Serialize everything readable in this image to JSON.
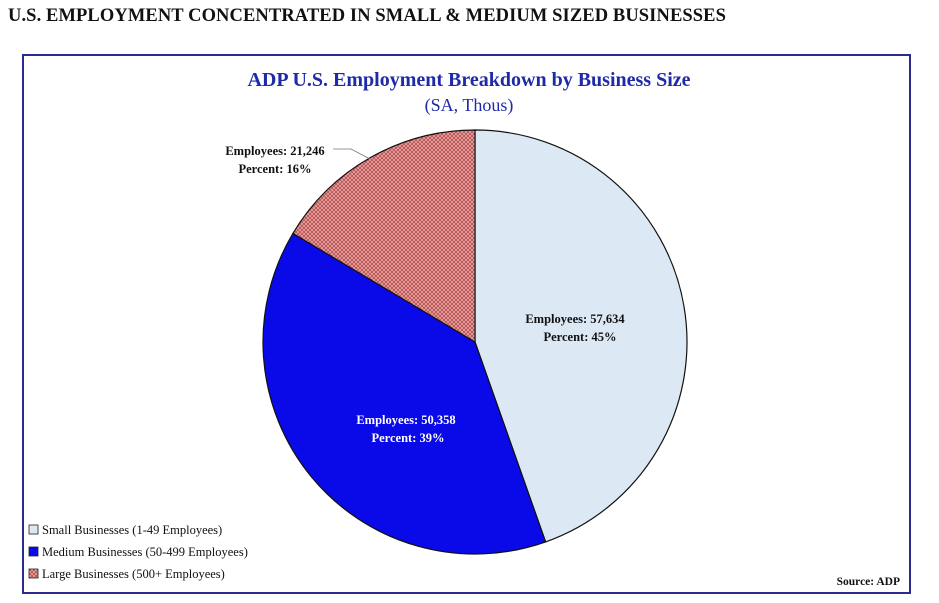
{
  "header": {
    "title": "U.S. EMPLOYMENT CONCENTRATED IN SMALL & MEDIUM SIZED BUSINESSES"
  },
  "chart_data": {
    "type": "pie",
    "title": "ADP U.S. Employment Breakdown by Business Size",
    "subtitle": "(SA, Thous)",
    "source": "Source: ADP",
    "legend_placement": "bottom-left",
    "slices": [
      {
        "name": "Small Businesses (1-49 Employees)",
        "value": 57634,
        "percent": 45,
        "label_line1": "Employees:  57,634",
        "label_line2": "Percent: 45%",
        "color": "#dde8f5",
        "pattern": "solid",
        "label_color": "#111111"
      },
      {
        "name": "Medium Businesses (50-499 Employees)",
        "value": 50358,
        "percent": 39,
        "label_line1": "Employees: 50,358",
        "label_line2": "Percent: 39%",
        "color": "#0a0ae8",
        "pattern": "solid",
        "label_color": "#ffffff"
      },
      {
        "name": "Large Businesses (500+ Employees)",
        "value": 21246,
        "percent": 16,
        "label_line1": "Employees:  21,246",
        "label_line2": "Percent: 16%",
        "color": "#d67d7d",
        "pattern": "crosshatch",
        "label_color": "#111111"
      }
    ]
  }
}
